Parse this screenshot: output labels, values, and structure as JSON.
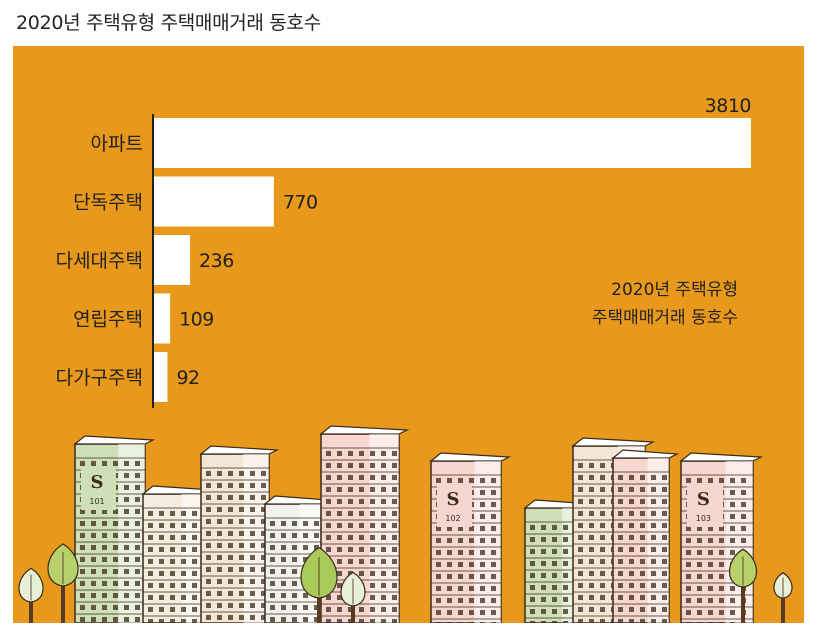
{
  "page": {
    "title": "2020년 주택유형 주택매매거래 동호수"
  },
  "inset_title": {
    "line1": "2020년 주택유형",
    "line2": "주택매매거래 동호수"
  },
  "colors": {
    "background": "#e8981b",
    "bar": "#ffffff",
    "axis": "#222222",
    "text": "#222222"
  },
  "chart_data": {
    "type": "bar",
    "orientation": "horizontal",
    "title": "2020년 주택유형 주택매매거래 동호수",
    "categories": [
      "아파트",
      "단독주택",
      "다세대주택",
      "연립주택",
      "다가구주택"
    ],
    "values": [
      3810,
      770,
      236,
      109,
      92
    ],
    "data_labels": [
      "3810",
      "770",
      "236",
      "109",
      "92"
    ],
    "xlim": [
      0,
      3810
    ],
    "grid": false,
    "legend": "none"
  },
  "decoration": {
    "building_labels": [
      "101",
      "102",
      "103"
    ],
    "building_mark": "S"
  }
}
